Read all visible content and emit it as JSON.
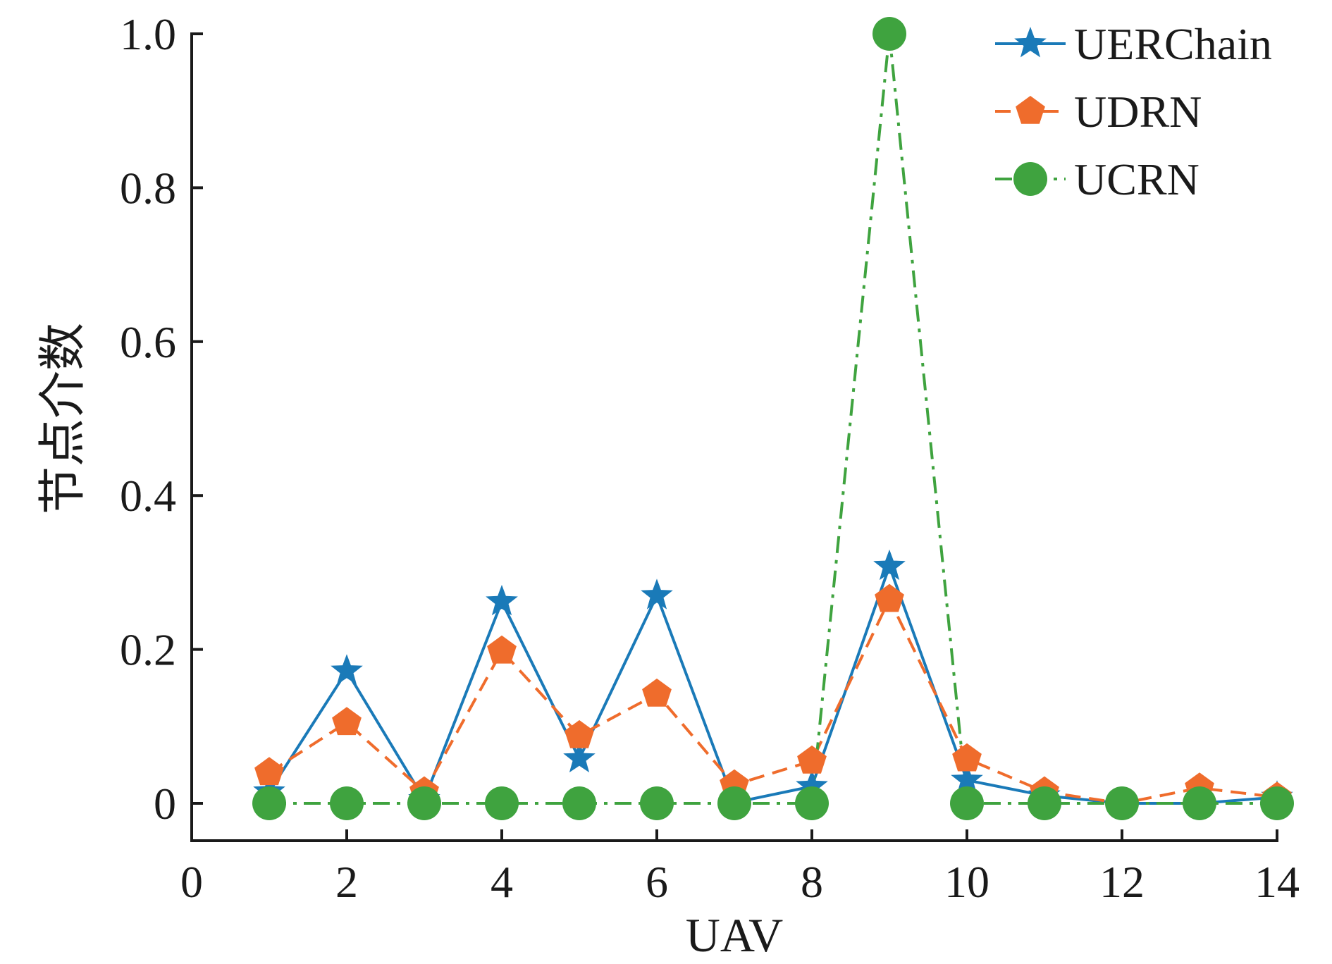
{
  "chart_data": {
    "type": "line",
    "xlabel": "UAV",
    "ylabel": "节点介数",
    "xlim": [
      0,
      14
    ],
    "ylim": [
      0,
      1.0
    ],
    "xticks": [
      "0",
      "2",
      "4",
      "6",
      "8",
      "10",
      "12",
      "14"
    ],
    "yticks": [
      "0",
      "0.2",
      "0.4",
      "0.6",
      "0.8",
      "1.0"
    ],
    "grid": false,
    "legend_position": "top-right",
    "x": [
      1,
      2,
      3,
      4,
      5,
      6,
      7,
      8,
      9,
      10,
      11,
      12,
      13,
      14
    ],
    "series": [
      {
        "name": "UERChain",
        "color": "#1a7ab8",
        "marker": "star",
        "line_style": "solid",
        "values": [
          0.015,
          0.172,
          0.005,
          0.262,
          0.058,
          0.27,
          0.001,
          0.022,
          0.308,
          0.03,
          0.01,
          0.0,
          0.0,
          0.008
        ]
      },
      {
        "name": "UDRN",
        "color": "#ef6c2c",
        "marker": "pentagon",
        "line_style": "dashed",
        "values": [
          0.04,
          0.105,
          0.015,
          0.198,
          0.088,
          0.142,
          0.024,
          0.055,
          0.265,
          0.058,
          0.015,
          0.0,
          0.02,
          0.008
        ]
      },
      {
        "name": "UCRN",
        "color": "#3fa33f",
        "marker": "circle",
        "line_style": "dash-dot",
        "values": [
          0,
          0,
          0,
          0,
          0,
          0,
          0,
          0,
          1.0,
          0,
          0,
          0,
          0,
          0
        ]
      }
    ]
  }
}
